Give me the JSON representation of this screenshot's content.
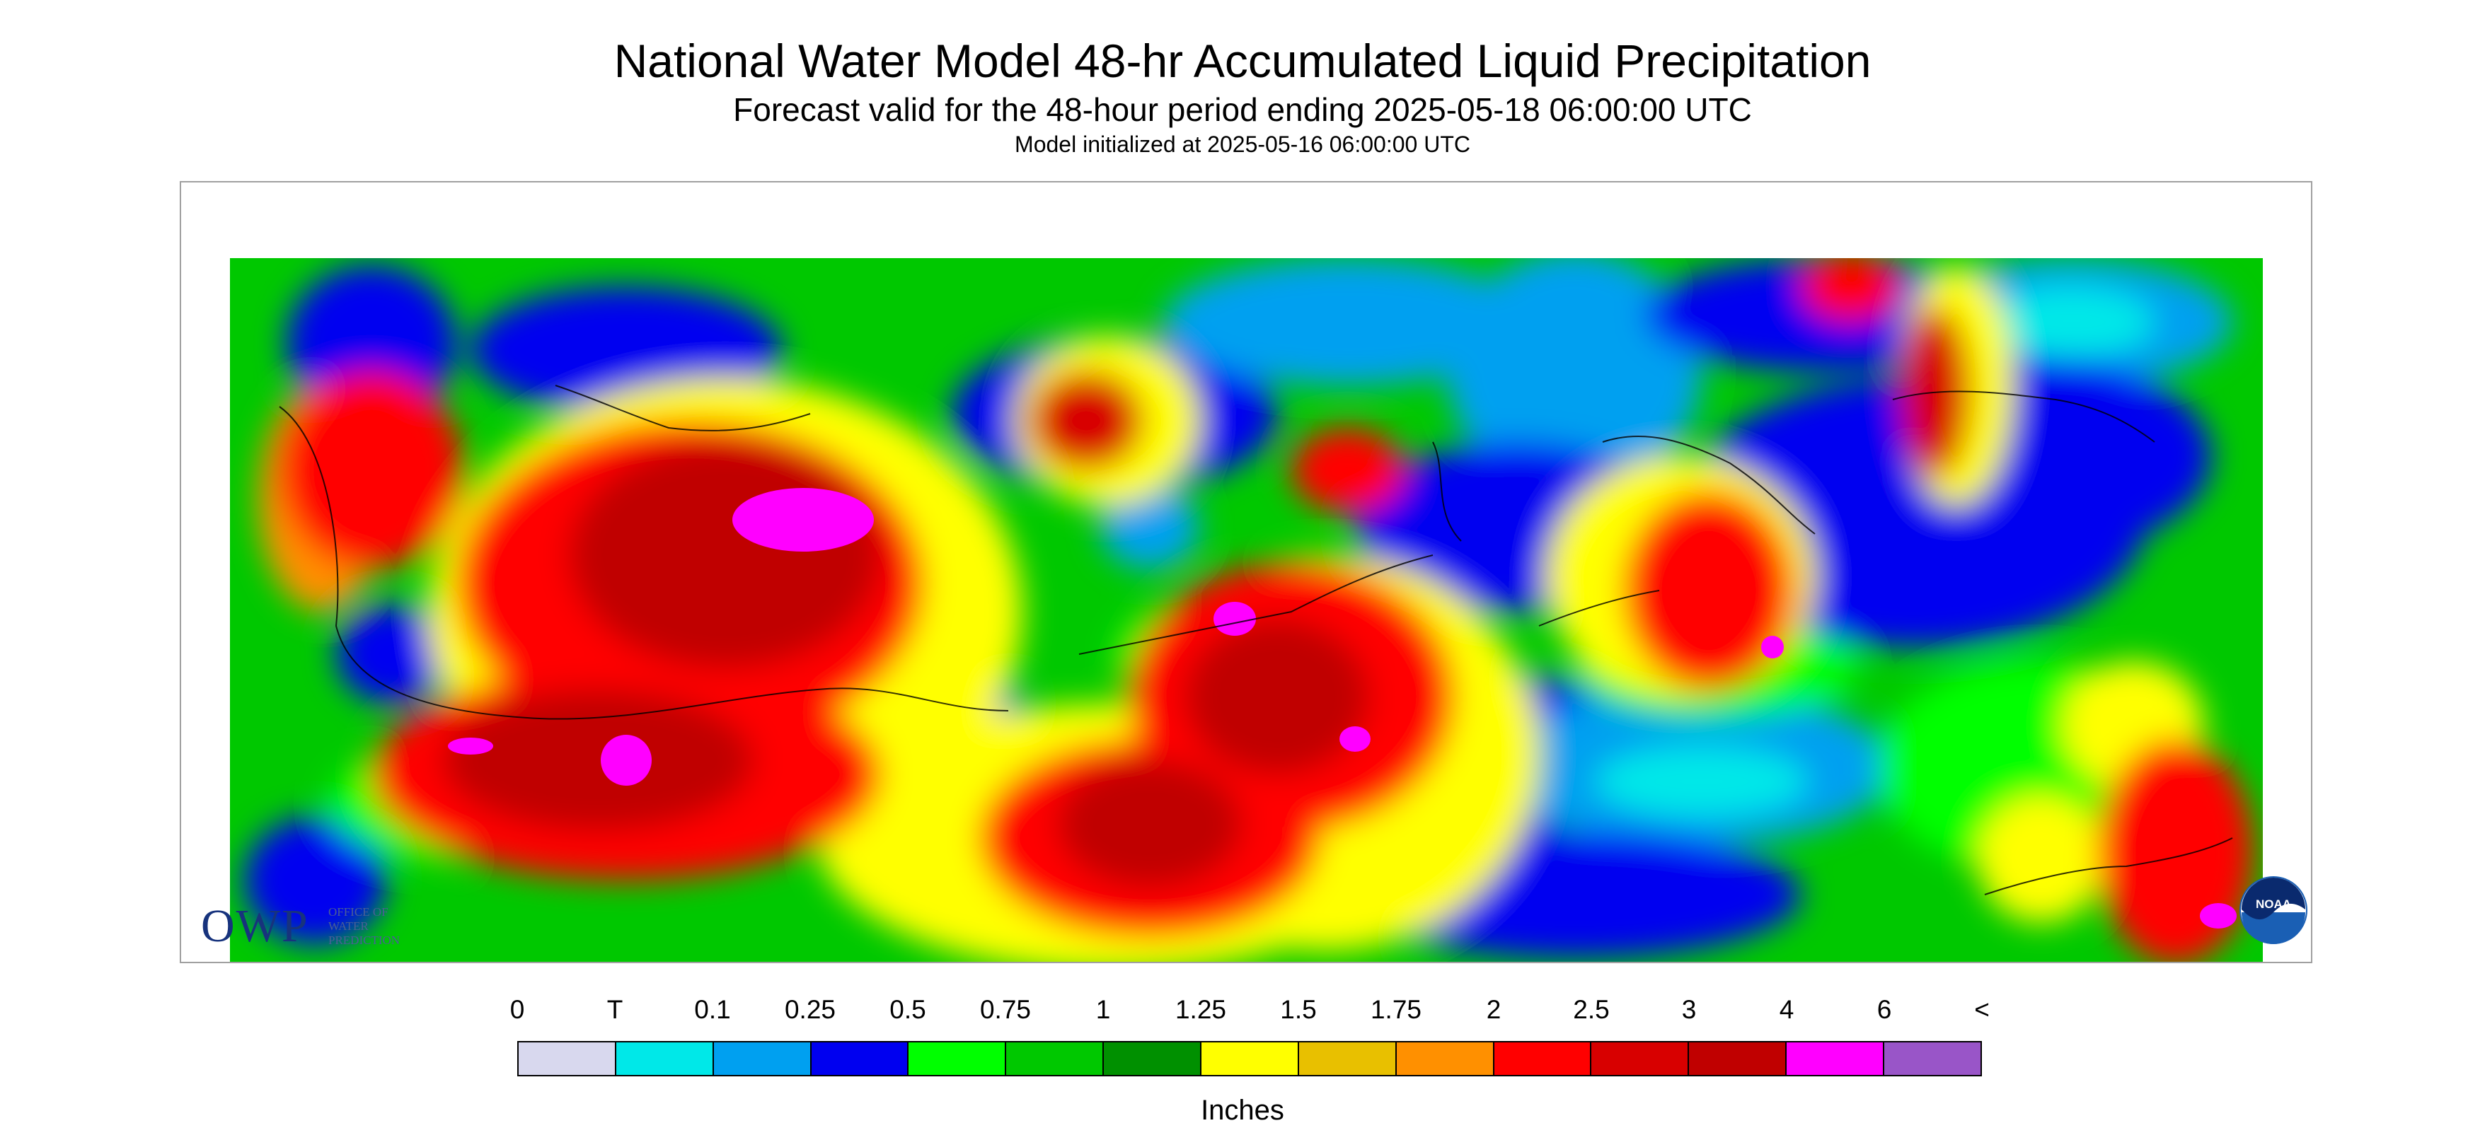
{
  "header": {
    "title": "National Water Model 48-hr Accumulated Liquid Precipitation",
    "subtitle": "Forecast valid for the 48-hour period ending 2025-05-18 06:00:00 UTC",
    "init_line": "Model initialized at 2025-05-16 06:00:00 UTC"
  },
  "logos": {
    "owp_text": "OWP",
    "owp_subtext": "OFFICE OF WATER PREDICTION",
    "noaa_text": "NOAA"
  },
  "legend": {
    "unit": "Inches",
    "tick_labels": [
      "0",
      "T",
      "0.1",
      "0.25",
      "0.5",
      "0.75",
      "1",
      "1.25",
      "1.5",
      "1.75",
      "2",
      "2.5",
      "3",
      "4",
      "6",
      "<"
    ],
    "colors": [
      "#d8d8ee",
      "#00e8e8",
      "#00a0f0",
      "#0000f0",
      "#00ff00",
      "#00c800",
      "#009000",
      "#ffff00",
      "#e8c000",
      "#ff9000",
      "#ff0000",
      "#d80000",
      "#c00000",
      "#ff00ff",
      "#9955c8"
    ]
  },
  "colors": {
    "frame_border": "#a0a0a0",
    "coastline": "#000000",
    "owp_blue": "#17337d",
    "noaa_blue": "#1a5fb4"
  }
}
